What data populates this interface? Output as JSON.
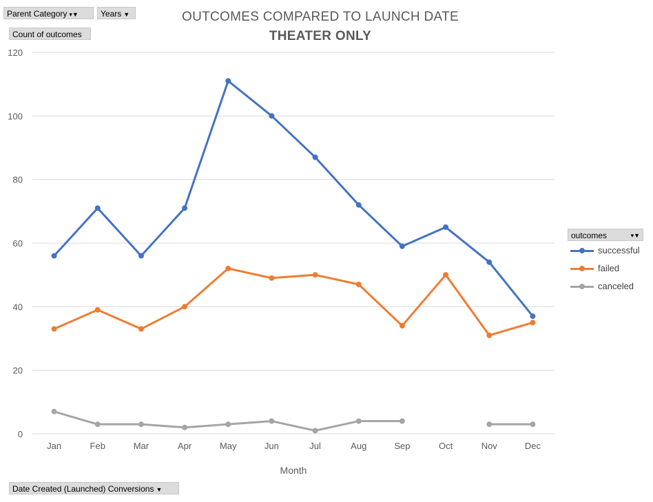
{
  "pivot_buttons": {
    "parent_category": "Parent Category",
    "years": "Years",
    "count_field": "Count of outcomes",
    "legend_field": "outcomes",
    "axis_field": "Date Created (Launched) Conversions"
  },
  "icons": {
    "filter": "filter-icon",
    "dropdown": "dropdown-arrow-icon"
  },
  "colors": {
    "successful": "#4472C4",
    "failed": "#ED7D31",
    "canceled": "#A5A5A5",
    "gridline": "#d9d9d9",
    "axis_text": "#595959"
  },
  "chart_data": {
    "type": "line",
    "title": "OUTCOMES COMPARED TO LAUNCH DATE",
    "subtitle": "THEATER ONLY",
    "xlabel": "Month",
    "ylabel": "",
    "ylim": [
      0,
      120
    ],
    "yticks": [
      "0",
      "20",
      "40",
      "60",
      "80",
      "100",
      "120"
    ],
    "grid": true,
    "legend_position": "right",
    "categories": [
      "Jan",
      "Feb",
      "Mar",
      "Apr",
      "May",
      "Jun",
      "Jul",
      "Aug",
      "Sep",
      "Oct",
      "Nov",
      "Dec"
    ],
    "series": [
      {
        "name": "successful",
        "values": [
          56,
          71,
          56,
          71,
          111,
          100,
          87,
          72,
          59,
          65,
          54,
          37
        ]
      },
      {
        "name": "failed",
        "values": [
          33,
          39,
          33,
          40,
          52,
          49,
          50,
          47,
          34,
          50,
          31,
          35
        ]
      },
      {
        "name": "canceled",
        "values": [
          7,
          3,
          3,
          2,
          3,
          4,
          1,
          4,
          4,
          null,
          3,
          3
        ]
      }
    ]
  }
}
